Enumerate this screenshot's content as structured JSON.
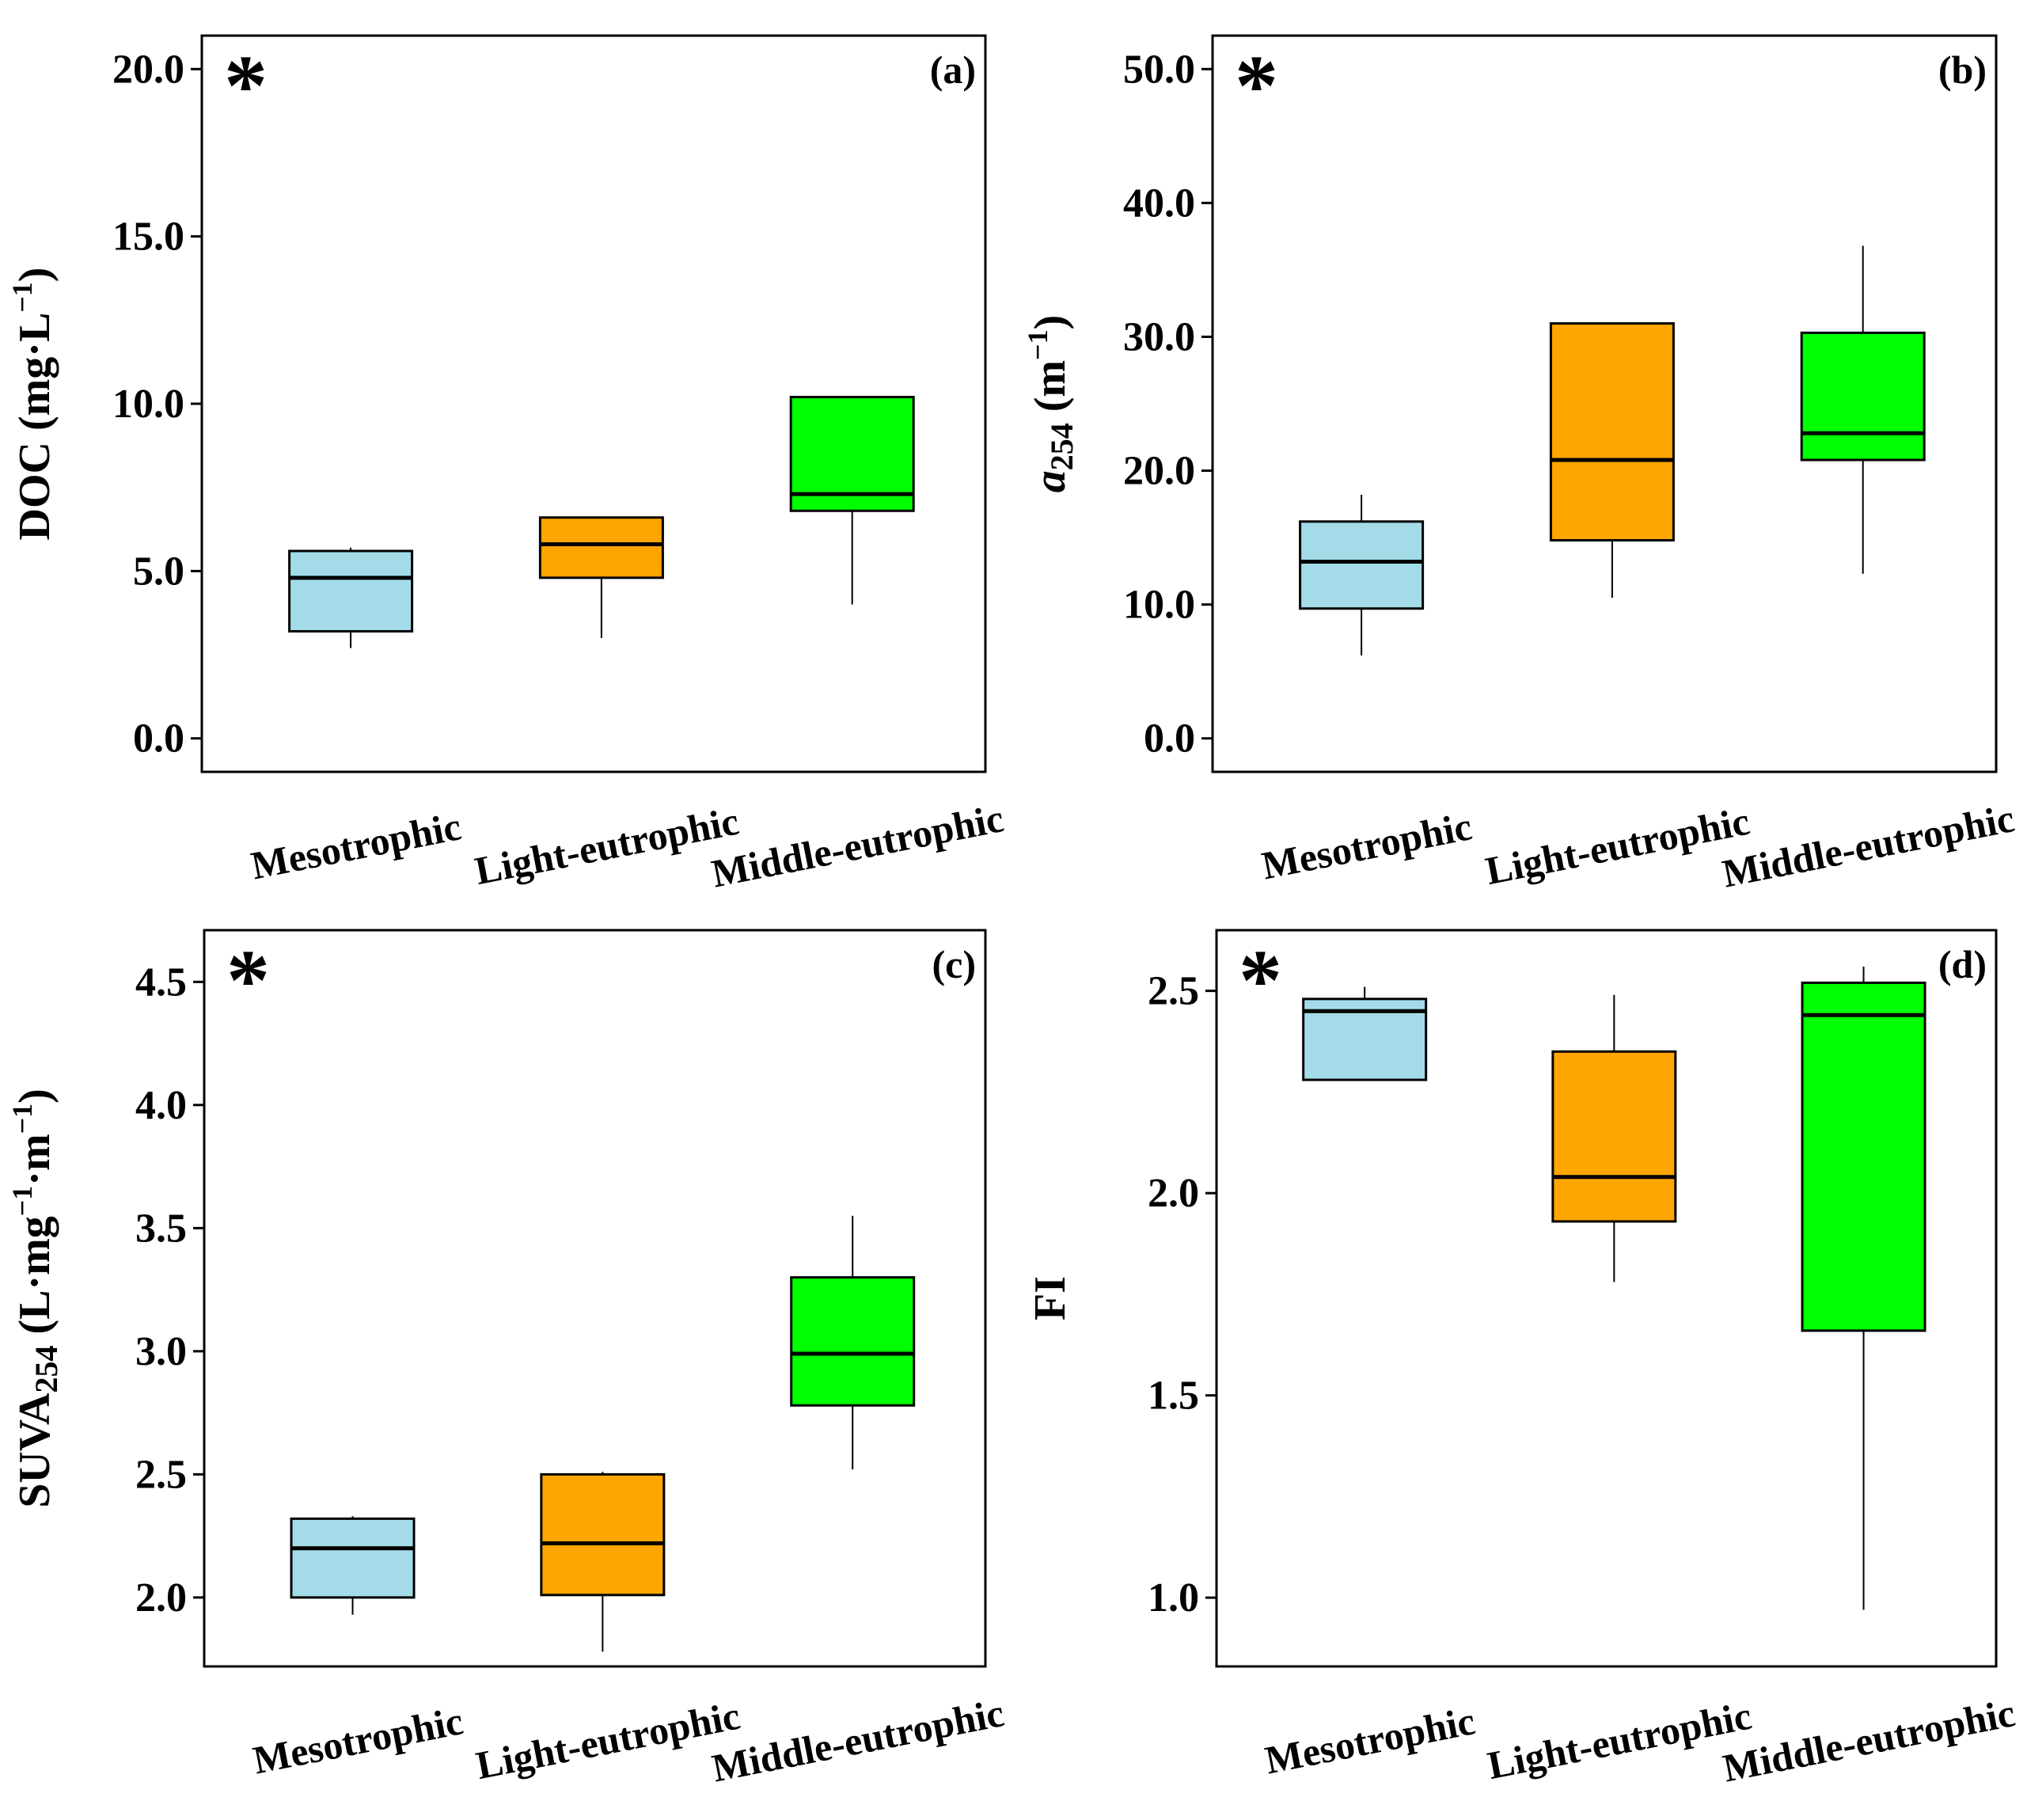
{
  "chart_data": [
    {
      "type": "box",
      "panel_label": "(a)",
      "significance": "*",
      "ylabel": {
        "parts": [
          {
            "text": "DOC (mg·L"
          },
          {
            "text": "−1",
            "style": "sup"
          },
          {
            "text": ")"
          }
        ]
      },
      "ylim": [
        -1.0,
        21.0
      ],
      "yticks": [
        0.0,
        5.0,
        10.0,
        15.0,
        20.0
      ],
      "tick_labels": [
        "0.0",
        "5.0",
        "10.0",
        "15.0",
        "20.0"
      ],
      "categories": [
        "Mesotrophic",
        "Light-eutrophic",
        "Middle-eutrophic"
      ],
      "colors": [
        "#a3dce8",
        "#ffa500",
        "#00ff00"
      ],
      "boxes": [
        {
          "whisker_low": 2.7,
          "q1": 3.2,
          "median": 4.8,
          "q3": 5.6,
          "whisker_high": 5.7
        },
        {
          "whisker_low": 3.0,
          "q1": 4.8,
          "median": 5.8,
          "q3": 6.6,
          "whisker_high": 6.6
        },
        {
          "whisker_low": 4.0,
          "q1": 6.8,
          "median": 7.3,
          "q3": 10.2,
          "whisker_high": 10.2
        }
      ]
    },
    {
      "type": "box",
      "panel_label": "(b)",
      "significance": "*",
      "ylabel": {
        "parts": [
          {
            "text": "a",
            "style": "italic"
          },
          {
            "text": "254",
            "style": "sub"
          },
          {
            "text": " (m"
          },
          {
            "text": "−1",
            "style": "sup"
          },
          {
            "text": ")"
          }
        ]
      },
      "ylim": [
        -2.5,
        52.5
      ],
      "yticks": [
        0.0,
        10.0,
        20.0,
        30.0,
        40.0,
        50.0
      ],
      "tick_labels": [
        "0.0",
        "10.0",
        "20.0",
        "30.0",
        "40.0",
        "50.0"
      ],
      "categories": [
        "Mesotrophic",
        "Light-eutrophic",
        "Middle-eutrophic"
      ],
      "colors": [
        "#a3dce8",
        "#ffa500",
        "#00ff00"
      ],
      "boxes": [
        {
          "whisker_low": 6.2,
          "q1": 9.7,
          "median": 13.2,
          "q3": 16.2,
          "whisker_high": 18.2
        },
        {
          "whisker_low": 10.5,
          "q1": 14.8,
          "median": 20.8,
          "q3": 31.0,
          "whisker_high": 31.0
        },
        {
          "whisker_low": 12.3,
          "q1": 20.8,
          "median": 22.8,
          "q3": 30.3,
          "whisker_high": 36.8
        }
      ]
    },
    {
      "type": "box",
      "panel_label": "(c)",
      "significance": "*",
      "ylabel": {
        "parts": [
          {
            "text": "SUVA"
          },
          {
            "text": "254",
            "style": "sub"
          },
          {
            "text": " (L·mg"
          },
          {
            "text": "−1",
            "style": "sup"
          },
          {
            "text": "·m"
          },
          {
            "text": "−1",
            "style": "sup"
          },
          {
            "text": ")"
          }
        ]
      },
      "ylim": [
        1.72,
        4.71
      ],
      "yticks": [
        2.0,
        2.5,
        3.0,
        3.5,
        4.0,
        4.5
      ],
      "tick_labels": [
        "2.0",
        "2.5",
        "3.0",
        "3.5",
        "4.0",
        "4.5"
      ],
      "categories": [
        "Mesotrophic",
        "Light-eutrophic",
        "Middle-eutrophic"
      ],
      "colors": [
        "#a3dce8",
        "#ffa500",
        "#00ff00"
      ],
      "boxes": [
        {
          "whisker_low": 1.93,
          "q1": 2.0,
          "median": 2.2,
          "q3": 2.32,
          "whisker_high": 2.33
        },
        {
          "whisker_low": 1.78,
          "q1": 2.01,
          "median": 2.22,
          "q3": 2.5,
          "whisker_high": 2.51
        },
        {
          "whisker_low": 2.52,
          "q1": 2.78,
          "median": 2.99,
          "q3": 3.3,
          "whisker_high": 3.55
        }
      ]
    },
    {
      "type": "box",
      "panel_label": "(d)",
      "significance": "*",
      "ylabel": {
        "parts": [
          {
            "text": "FI"
          }
        ]
      },
      "ylim": [
        0.83,
        2.65
      ],
      "yticks": [
        1.0,
        1.5,
        2.0,
        2.5
      ],
      "tick_labels": [
        "1.0",
        "1.5",
        "2.0",
        "2.5"
      ],
      "categories": [
        "Mesotrophic",
        "Light-eutrophic",
        "Middle-eutrophic"
      ],
      "colors": [
        "#a3dce8",
        "#ffa500",
        "#00ff00"
      ],
      "boxes": [
        {
          "whisker_low": 2.28,
          "q1": 2.28,
          "median": 2.45,
          "q3": 2.48,
          "whisker_high": 2.51
        },
        {
          "whisker_low": 1.78,
          "q1": 1.93,
          "median": 2.04,
          "q3": 2.35,
          "whisker_high": 2.49
        },
        {
          "whisker_low": 0.97,
          "q1": 1.66,
          "median": 2.44,
          "q3": 2.52,
          "whisker_high": 2.56
        }
      ]
    }
  ]
}
